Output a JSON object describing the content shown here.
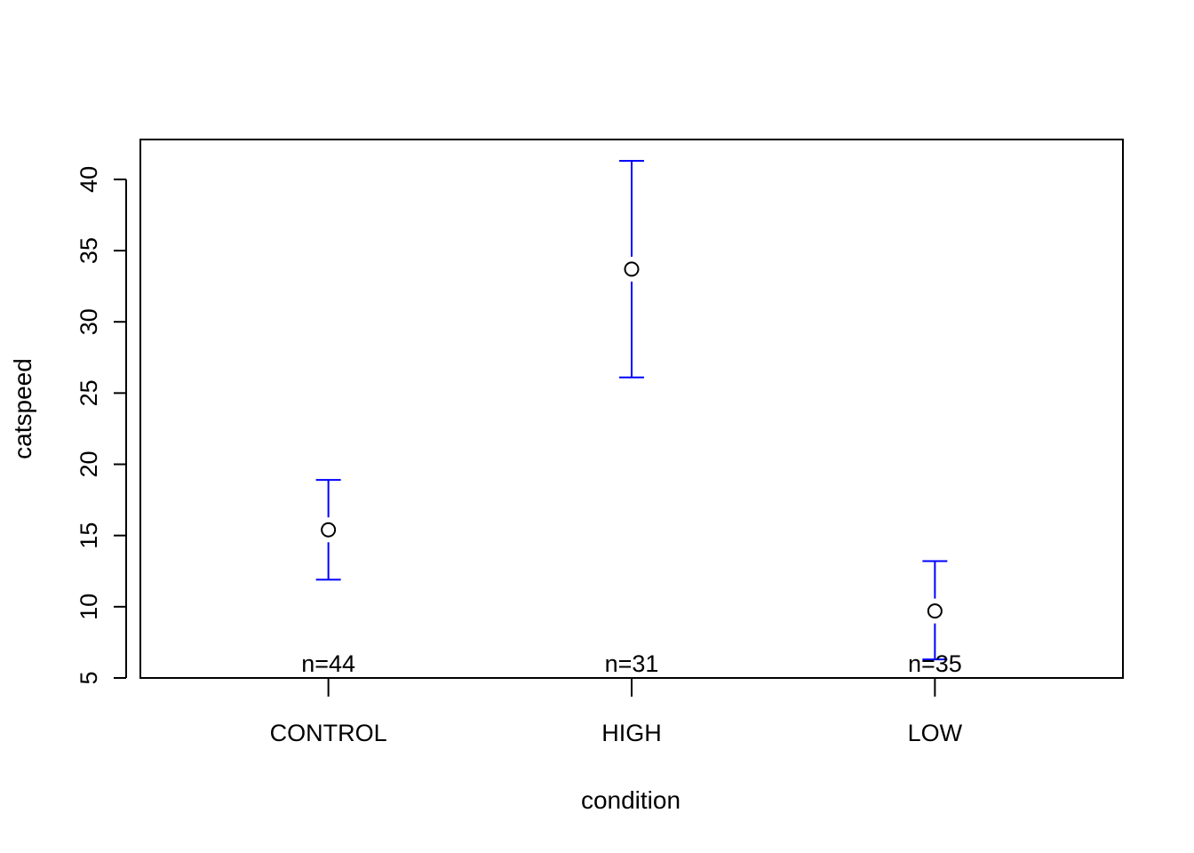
{
  "chart_data": {
    "type": "scatter",
    "title": "",
    "xlabel": "condition",
    "ylabel": "catspeed",
    "categories": [
      "CONTROL",
      "HIGH",
      "LOW"
    ],
    "series": [
      {
        "points": [
          {
            "category": "CONTROL",
            "mean": 15.4,
            "lower": 11.9,
            "upper": 18.9,
            "n_label": "n=44"
          },
          {
            "category": "HIGH",
            "mean": 33.7,
            "lower": 26.1,
            "upper": 41.3,
            "n_label": "n=31"
          },
          {
            "category": "LOW",
            "mean": 9.7,
            "lower": 6.3,
            "upper": 13.2,
            "n_label": "n=35"
          }
        ]
      }
    ],
    "ylim": [
      5,
      42.8
    ],
    "yticks": [
      5,
      10,
      15,
      20,
      25,
      30,
      35,
      40
    ],
    "xlim": [
      0.38,
      3.62
    ],
    "grid": false,
    "colors": {
      "errorbar": "#0000ff",
      "point": "#000000",
      "axis": "#000000"
    }
  }
}
